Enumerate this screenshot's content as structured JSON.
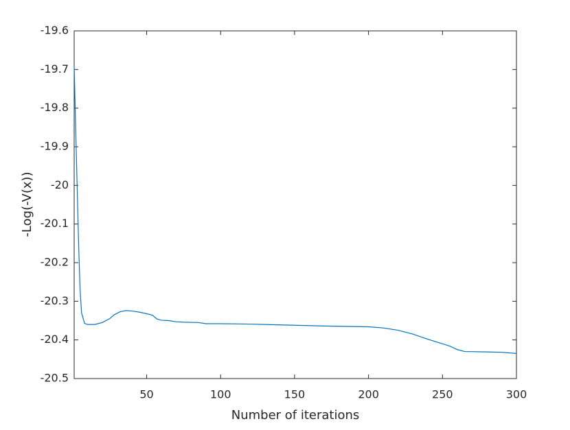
{
  "chart_data": {
    "type": "line",
    "x_label": "Number of iterations",
    "y_label": "-Log(-V(x))",
    "x": [
      1,
      2,
      3,
      4,
      5,
      6,
      8,
      10,
      15,
      20,
      25,
      28,
      32,
      36,
      40,
      45,
      50,
      54,
      57,
      60,
      65,
      70,
      75,
      85,
      90,
      100,
      120,
      150,
      170,
      200,
      210,
      220,
      230,
      240,
      250,
      255,
      260,
      265,
      280,
      290,
      300
    ],
    "series": [
      {
        "color": "#0072bd",
        "values": [
          -19.69,
          -19.85,
          -20.0,
          -20.15,
          -20.27,
          -20.33,
          -20.357,
          -20.36,
          -20.36,
          -20.355,
          -20.345,
          -20.335,
          -20.327,
          -20.324,
          -20.325,
          -20.328,
          -20.332,
          -20.336,
          -20.346,
          -20.349,
          -20.35,
          -20.353,
          -20.354,
          -20.355,
          -20.358,
          -20.358,
          -20.359,
          -20.362,
          -20.364,
          -20.366,
          -20.369,
          -20.375,
          -20.385,
          -20.398,
          -20.41,
          -20.416,
          -20.425,
          -20.43,
          -20.431,
          -20.432,
          -20.435
        ]
      }
    ],
    "xlim": [
      1,
      300
    ],
    "ylim": [
      -20.5,
      -19.6
    ],
    "xticks": [
      50,
      100,
      150,
      200,
      250,
      300
    ],
    "yticks": [
      -20.5,
      -20.4,
      -20.3,
      -20.2,
      -20.1,
      -20,
      -19.9,
      -19.8,
      -19.7,
      -19.6
    ]
  }
}
